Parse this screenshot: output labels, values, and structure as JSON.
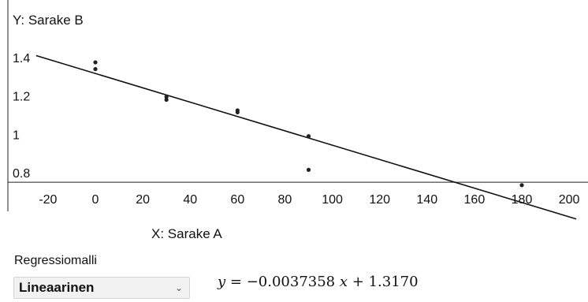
{
  "axes": {
    "y_title": "Y:  Sarake B",
    "x_title": "X:  Sarake A"
  },
  "controls": {
    "regression_label": "Regressiomalli",
    "model_value": "Lineaarinen",
    "chevron_icon": "chevron-down-icon"
  },
  "equation": {
    "lhs": "y",
    "rhs_before_x": "= −0.0037358",
    "x_var": "x",
    "rhs_after_x": "+ 1.3170"
  },
  "chart_data": {
    "type": "scatter",
    "x_label": "X:  Sarake A",
    "y_label": "Y:  Sarake B",
    "xlim": [
      -20,
      200
    ],
    "ylim": [
      0.75,
      1.45
    ],
    "x_ticks": [
      -20,
      0,
      20,
      40,
      60,
      80,
      100,
      120,
      140,
      160,
      180,
      200
    ],
    "y_ticks": [
      0.8,
      1,
      1.2,
      1.4
    ],
    "y_tick_labels": [
      "0.8",
      "1",
      "1.2",
      "1.4"
    ],
    "points": [
      {
        "x": 0,
        "y": 1.375
      },
      {
        "x": 0,
        "y": 1.34
      },
      {
        "x": 30,
        "y": 1.195
      },
      {
        "x": 30,
        "y": 1.18
      },
      {
        "x": 60,
        "y": 1.125
      },
      {
        "x": 60,
        "y": 1.115
      },
      {
        "x": 90,
        "y": 0.99
      },
      {
        "x": 90,
        "y": 0.815
      },
      {
        "x": 180,
        "y": 0.735
      }
    ],
    "regression": {
      "slope": -0.0037358,
      "intercept": 1.317
    }
  }
}
